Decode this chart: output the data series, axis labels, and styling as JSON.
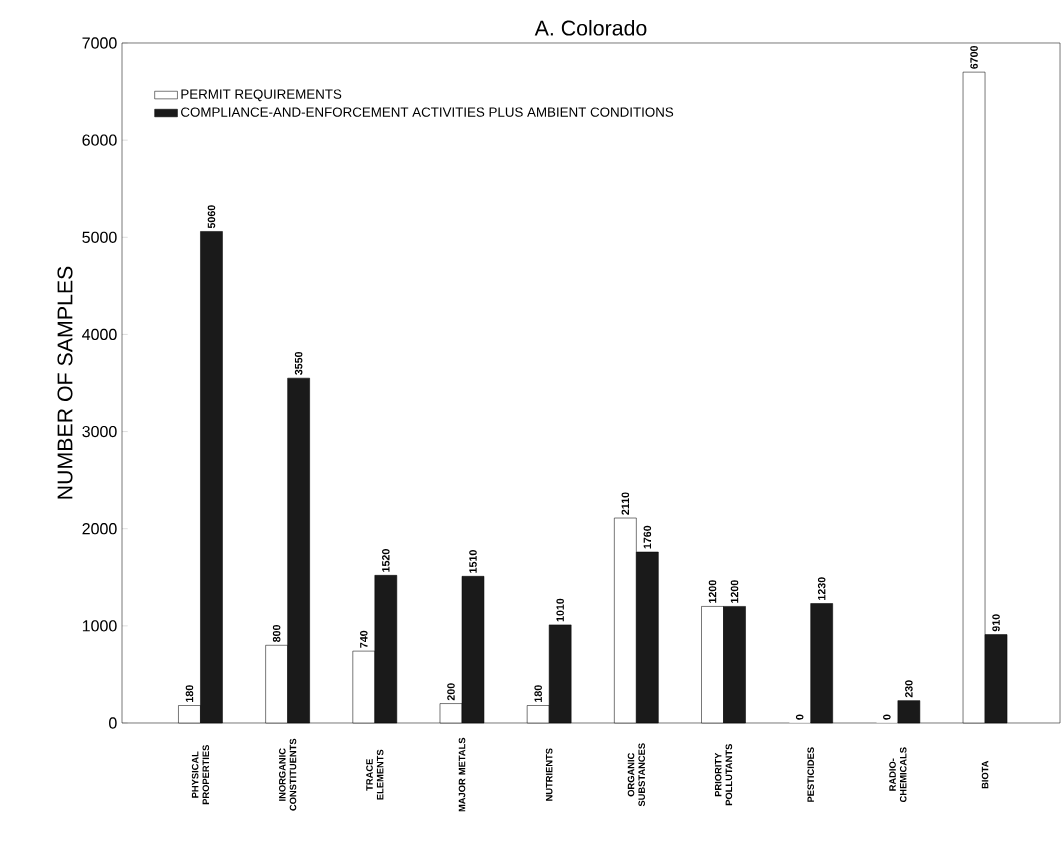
{
  "chart_data": {
    "type": "bar",
    "title": "A. Colorado",
    "ylabel": "NUMBER OF SAMPLES",
    "categories": [
      "PHYSICAL PROPERTIES",
      "INORGANIC CONSTITUENTS",
      "TRACE ELEMENTS",
      "MAJOR METALS",
      "NUTRIENTS",
      "ORGANIC SUBSTANCES",
      "PRIORITY POLLUTANTS",
      "PESTICIDES",
      "RADIO-CHEMICALS",
      "BIOTA"
    ],
    "series": [
      {
        "name": "PERMIT REQUIREMENTS",
        "color": "#ffffff",
        "values": [
          180,
          800,
          740,
          200,
          180,
          2110,
          1200,
          0,
          0,
          6700
        ]
      },
      {
        "name": "COMPLIANCE-AND-ENFORCEMENT ACTIVITIES PLUS AMBIENT CONDITIONS",
        "color": "#1a1a1a",
        "values": [
          5060,
          3550,
          1520,
          1510,
          1010,
          1760,
          1200,
          1230,
          230,
          910
        ]
      }
    ],
    "ylim": [
      0,
      7000
    ],
    "yticks": [
      0,
      1000,
      2000,
      3000,
      4000,
      5000,
      6000,
      7000
    ],
    "legend": "top left",
    "data_labels": true
  }
}
